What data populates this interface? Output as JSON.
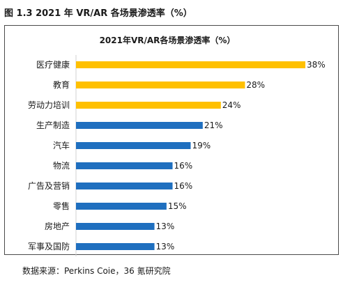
{
  "figure_caption": "图 1.3 2021 年 VR/AR 各场景渗透率（%）",
  "source_note": "数据来源：Perkins Coie，36 氪研究院",
  "colors": {
    "highlight": "#ffc000",
    "primary": "#1f6fbf"
  },
  "chart_data": {
    "type": "bar",
    "orientation": "horizontal",
    "title": "2021年VR/AR各场景渗透率（%）",
    "categories": [
      "医疗健康",
      "教育",
      "劳动力培训",
      "生产制造",
      "汽车",
      "物流",
      "广告及营销",
      "零售",
      "房地产",
      "军事及国防"
    ],
    "values": [
      38,
      28,
      24,
      21,
      19,
      16,
      16,
      15,
      13,
      13
    ],
    "value_labels": [
      "38%",
      "28%",
      "24%",
      "21%",
      "19%",
      "16%",
      "16%",
      "15%",
      "13%",
      "13%"
    ],
    "bar_colors": [
      "#ffc000",
      "#ffc000",
      "#ffc000",
      "#1f6fbf",
      "#1f6fbf",
      "#1f6fbf",
      "#1f6fbf",
      "#1f6fbf",
      "#1f6fbf",
      "#1f6fbf"
    ],
    "xlim": [
      0,
      38
    ],
    "grid": false,
    "legend": false
  }
}
